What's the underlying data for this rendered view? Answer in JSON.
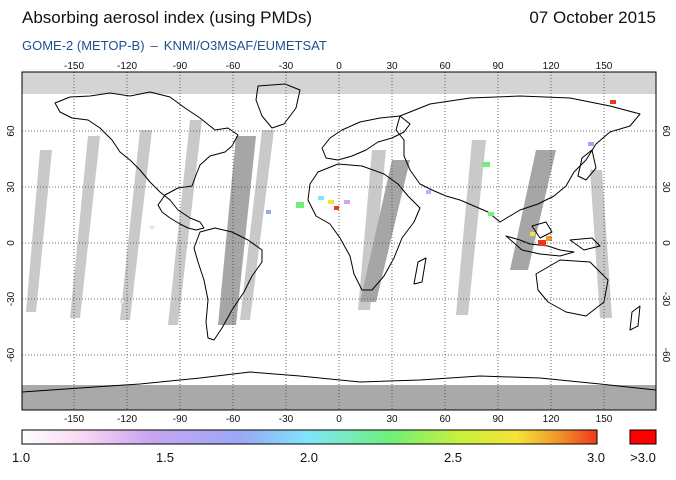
{
  "header": {
    "title": "Absorbing aerosol index (using PMDs)",
    "date": "07 October 2015",
    "instrument": "GOME-2 (METOP-B)",
    "separator": "–",
    "provider": "KNMI/O3MSAF/EUMETSAT"
  },
  "map": {
    "lon_ticks": [
      "-150",
      "-120",
      "-90",
      "-60",
      "-30",
      "0",
      "30",
      "60",
      "90",
      "120",
      "150"
    ],
    "lat_ticks_left": [
      "60",
      "30",
      "0",
      "-30",
      "-60"
    ],
    "lat_ticks_right": [
      "60",
      "30",
      "0",
      "-30",
      "-60"
    ],
    "colors": {
      "land_outline": "#000000",
      "no_data": "#c8c8c8",
      "missing_swath": "#a8a8a8"
    }
  },
  "colorbar": {
    "labels": [
      "1.0",
      "1.5",
      "2.0",
      "2.5",
      "3.0"
    ],
    "overflow_label": ">3.0",
    "overflow_color": "#ff0000",
    "gradient_stops": [
      "#ffffff",
      "#f6d6f2",
      "#c9a6f0",
      "#9aa8f6",
      "#7fe6f8",
      "#6ef07a",
      "#c8f03c",
      "#f6e23a",
      "#f09a2a",
      "#ee3a1a"
    ]
  }
}
